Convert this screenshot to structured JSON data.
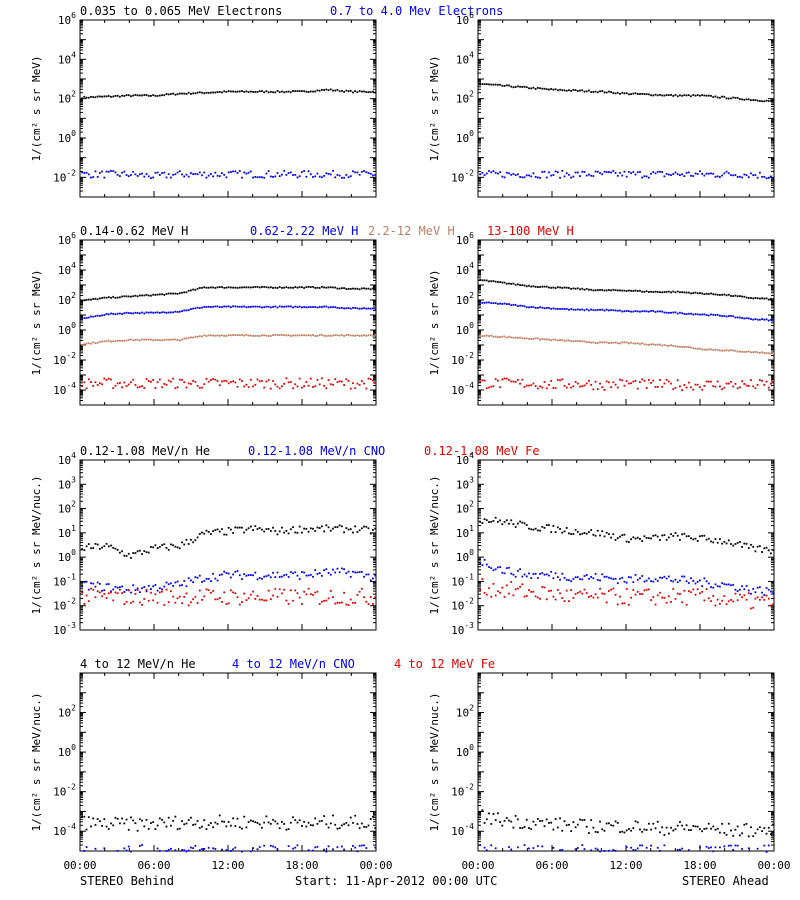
{
  "colors": {
    "black": "#000000",
    "blue": "#0000ee",
    "tan": "#bc7f64",
    "red": "#e00000"
  },
  "footer": {
    "left": "STEREO Behind",
    "center": "Start: 11-Apr-2012 00:00 UTC",
    "right": "STEREO Ahead"
  },
  "chart_data": [
    {
      "id": "electrons",
      "type": "scatter",
      "scale": "log",
      "ylim_exp": [
        -3,
        6
      ],
      "tick_exps": [
        -2,
        0,
        2,
        4,
        6
      ],
      "ylabel": "1/(cm² s sr MeV)",
      "legend": [
        {
          "label": "0.035 to 0.065 MeV Electrons",
          "color": "black"
        },
        {
          "label": "0.7 to 4.0 Mev Electrons",
          "color": "blue"
        }
      ],
      "x_hours": [
        0,
        2,
        4,
        6,
        8,
        10,
        12,
        14,
        16,
        18,
        20,
        22,
        24
      ],
      "panels": [
        {
          "side": "STEREO Behind",
          "series": [
            {
              "color": "black",
              "log10": [
                2.1,
                2.15,
                2.2,
                2.2,
                2.3,
                2.35,
                2.4,
                2.4,
                2.4,
                2.4,
                2.5,
                2.4,
                2.4
              ]
            },
            {
              "color": "blue",
              "log10": [
                -1.8,
                -1.8,
                -1.8,
                -1.9,
                -1.8,
                -1.8,
                -1.8,
                -1.8,
                -1.8,
                -1.8,
                -1.8,
                -1.8,
                -1.8
              ]
            }
          ]
        },
        {
          "side": "STEREO Ahead",
          "series": [
            {
              "color": "black",
              "log10": [
                2.8,
                2.7,
                2.6,
                2.5,
                2.45,
                2.4,
                2.3,
                2.25,
                2.2,
                2.2,
                2.1,
                2.0,
                1.9
              ]
            },
            {
              "color": "blue",
              "log10": [
                -1.8,
                -1.8,
                -1.8,
                -1.8,
                -1.8,
                -1.8,
                -1.8,
                -1.8,
                -1.8,
                -1.8,
                -1.8,
                -1.8,
                -1.9
              ]
            }
          ]
        }
      ]
    },
    {
      "id": "protons",
      "type": "scatter",
      "scale": "log",
      "ylim_exp": [
        -5,
        6
      ],
      "tick_exps": [
        -4,
        -2,
        0,
        2,
        4,
        6
      ],
      "ylabel": "1/(cm² s sr MeV)",
      "legend": [
        {
          "label": "0.14-0.62 MeV H",
          "color": "black"
        },
        {
          "label": "0.62-2.22 MeV H",
          "color": "blue"
        },
        {
          "label": "2.2-12 MeV H",
          "color": "tan"
        },
        {
          "label": "13-100 MeV H",
          "color": "red"
        }
      ],
      "x_hours": [
        0,
        2,
        4,
        6,
        8,
        10,
        12,
        14,
        16,
        18,
        20,
        22,
        24
      ],
      "panels": [
        {
          "side": "STEREO Behind",
          "series": [
            {
              "color": "black",
              "log10": [
                2.0,
                2.2,
                2.3,
                2.4,
                2.5,
                2.9,
                2.9,
                2.9,
                2.9,
                2.9,
                2.9,
                2.8,
                2.8
              ]
            },
            {
              "color": "blue",
              "log10": [
                0.8,
                1.1,
                1.2,
                1.2,
                1.3,
                1.6,
                1.6,
                1.6,
                1.6,
                1.6,
                1.6,
                1.5,
                1.5
              ]
            },
            {
              "color": "tan",
              "log10": [
                -0.9,
                -0.7,
                -0.6,
                -0.6,
                -0.6,
                -0.3,
                -0.3,
                -0.3,
                -0.3,
                -0.3,
                -0.3,
                -0.3,
                -0.3
              ]
            },
            {
              "color": "red",
              "log10": [
                -3.5,
                -3.5,
                -3.5,
                -3.5,
                -3.5,
                -3.5,
                -3.5,
                -3.5,
                -3.5,
                -3.5,
                -3.5,
                -3.5,
                -3.5
              ]
            }
          ]
        },
        {
          "side": "STEREO Ahead",
          "series": [
            {
              "color": "black",
              "log10": [
                3.4,
                3.2,
                3.0,
                2.9,
                2.8,
                2.7,
                2.7,
                2.6,
                2.6,
                2.5,
                2.4,
                2.2,
                2.1
              ]
            },
            {
              "color": "blue",
              "log10": [
                1.9,
                1.8,
                1.6,
                1.5,
                1.4,
                1.4,
                1.3,
                1.3,
                1.2,
                1.1,
                1.0,
                0.8,
                0.7
              ]
            },
            {
              "color": "tan",
              "log10": [
                -0.3,
                -0.4,
                -0.5,
                -0.6,
                -0.7,
                -0.8,
                -0.8,
                -0.9,
                -1.0,
                -1.2,
                -1.3,
                -1.4,
                -1.5
              ]
            },
            {
              "color": "red",
              "log10": [
                -3.5,
                -3.5,
                -3.5,
                -3.6,
                -3.5,
                -3.6,
                -3.5,
                -3.6,
                -3.6,
                -3.6,
                -3.6,
                -3.6,
                -3.6
              ]
            }
          ]
        }
      ]
    },
    {
      "id": "heavy-low",
      "type": "scatter",
      "scale": "log",
      "ylim_exp": [
        -3,
        4
      ],
      "tick_exps": [
        -3,
        -2,
        -1,
        0,
        1,
        2,
        3,
        4
      ],
      "ylabel": "1/(cm² s sr MeV/nuc.)",
      "legend": [
        {
          "label": "0.12-1.08 MeV/n He",
          "color": "black"
        },
        {
          "label": "0.12-1.08 MeV/n CNO",
          "color": "blue"
        },
        {
          "label": "0.12-1.08 MeV Fe",
          "color": "red"
        }
      ],
      "x_hours": [
        0,
        2,
        4,
        6,
        8,
        10,
        12,
        14,
        16,
        18,
        20,
        22,
        24
      ],
      "panels": [
        {
          "side": "STEREO Behind",
          "series": [
            {
              "color": "black",
              "log10": [
                0.4,
                0.5,
                0.1,
                0.4,
                0.5,
                1.0,
                1.1,
                1.2,
                1.1,
                1.2,
                1.2,
                1.2,
                1.1
              ]
            },
            {
              "color": "blue",
              "log10": [
                -1.1,
                -1.2,
                -1.3,
                -1.2,
                -1.1,
                -0.8,
                -0.7,
                -0.7,
                -0.7,
                -0.7,
                -0.6,
                -0.6,
                -0.8
              ]
            },
            {
              "color": "red",
              "log10": [
                -1.6,
                -1.6,
                -1.6,
                -1.6,
                -1.6,
                -1.6,
                -1.6,
                -1.6,
                -1.6,
                -1.6,
                -1.6,
                -1.6,
                -1.6
              ]
            }
          ]
        },
        {
          "side": "STEREO Ahead",
          "series": [
            {
              "color": "black",
              "log10": [
                1.6,
                1.5,
                1.3,
                1.2,
                1.1,
                1.0,
                0.8,
                0.8,
                0.9,
                0.8,
                0.7,
                0.4,
                0.3
              ]
            },
            {
              "color": "blue",
              "log10": [
                -0.1,
                -0.5,
                -0.7,
                -0.7,
                -0.8,
                -0.8,
                -0.9,
                -0.8,
                -0.9,
                -1.0,
                -1.1,
                -1.3,
                -1.4
              ]
            },
            {
              "color": "red",
              "log10": [
                -1.2,
                -1.3,
                -1.4,
                -1.5,
                -1.6,
                -1.6,
                -1.6,
                -1.6,
                -1.6,
                -1.6,
                -1.7,
                -1.8,
                -1.8
              ]
            }
          ]
        }
      ]
    },
    {
      "id": "heavy-high",
      "type": "scatter",
      "scale": "log",
      "ylim_exp": [
        -5,
        4
      ],
      "tick_exps": [
        -4,
        -2,
        0,
        2
      ],
      "ylabel": "1/(cm² s sr MeV/nuc.)",
      "legend": [
        {
          "label": "4 to 12 MeV/n He",
          "color": "black"
        },
        {
          "label": "4 to 12 MeV/n CNO",
          "color": "blue"
        },
        {
          "label": "4 to 12 MeV Fe",
          "color": "red"
        }
      ],
      "x_hours": [
        0,
        2,
        4,
        6,
        8,
        10,
        12,
        14,
        16,
        18,
        20,
        22,
        24
      ],
      "panels": [
        {
          "side": "STEREO Behind",
          "series": [
            {
              "color": "black",
              "log10": [
                -3.5,
                -3.6,
                -3.6,
                -3.6,
                -3.5,
                -3.5,
                -3.5,
                -3.5,
                -3.5,
                -3.6,
                -3.5,
                -3.5,
                -3.5
              ]
            },
            {
              "color": "blue",
              "log10": [
                -5,
                -5,
                -5,
                -5,
                -5,
                -5,
                -5,
                -5,
                -5,
                -5,
                -5,
                -5,
                -5
              ]
            }
          ]
        },
        {
          "side": "STEREO Ahead",
          "series": [
            {
              "color": "black",
              "log10": [
                -3.2,
                -3.4,
                -3.5,
                -3.6,
                -3.7,
                -3.7,
                -3.7,
                -3.8,
                -3.8,
                -3.8,
                -3.9,
                -3.9,
                -3.9
              ]
            },
            {
              "color": "blue",
              "log10": [
                -5,
                -5,
                -5,
                -5,
                -5,
                -5,
                -5,
                -5,
                -5,
                -5,
                -5,
                -5,
                -5
              ]
            }
          ]
        }
      ]
    }
  ],
  "x_axis": {
    "tick_labels": [
      "00:00",
      "06:00",
      "12:00",
      "18:00",
      "00:00"
    ],
    "range_hours": [
      0,
      24
    ]
  }
}
